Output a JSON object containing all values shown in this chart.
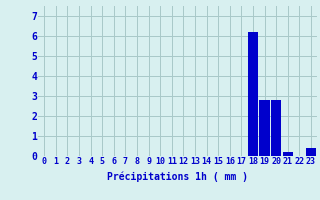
{
  "hours": [
    0,
    1,
    2,
    3,
    4,
    5,
    6,
    7,
    8,
    9,
    10,
    11,
    12,
    13,
    14,
    15,
    16,
    17,
    18,
    19,
    20,
    21,
    22,
    23
  ],
  "values": [
    0,
    0,
    0,
    0,
    0,
    0,
    0,
    0,
    0,
    0,
    0,
    0,
    0,
    0,
    0,
    0,
    0,
    0,
    6.2,
    2.8,
    2.8,
    0.2,
    0.0,
    0.4
  ],
  "bar_color": "#0000cc",
  "background_color": "#d8f0f0",
  "grid_color": "#a8c8c8",
  "xlabel": "Précipitations 1h ( mm )",
  "xlabel_color": "#0000cc",
  "tick_color": "#0000cc",
  "ylim": [
    0,
    7.5
  ],
  "yticks": [
    0,
    1,
    2,
    3,
    4,
    5,
    6,
    7
  ],
  "tick_fontsize": 6,
  "xlabel_fontsize": 7
}
